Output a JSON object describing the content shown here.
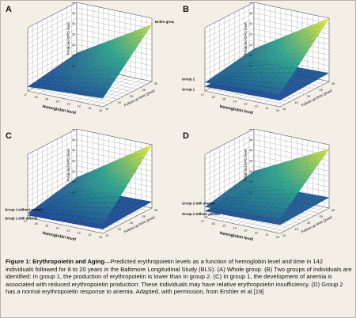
{
  "colors": {
    "background": "#f3efe6",
    "frame_border": "#b9b3a6",
    "surface_low": "#1d3f9a",
    "surface_mid": "#2fa48f",
    "surface_high": "#f0ea34",
    "grid": "#9a9a9a"
  },
  "chart_data": [
    {
      "panel": "A",
      "type": "surface",
      "zlabel": "Predicted EPO level",
      "xlabel": "Hemoglobin level",
      "ylabel": "Follow-up time (year)",
      "z_ticks": [
        "40",
        "35",
        "30",
        "25",
        "20",
        "15",
        "10"
      ],
      "x_ticks": [
        "17",
        "16",
        "15",
        "14",
        "13",
        "12",
        "11",
        "10"
      ],
      "y_ticks": [
        "10",
        "15",
        "20",
        "25",
        "30"
      ],
      "zlim": [
        10,
        40
      ],
      "series": [
        {
          "name": "Entire group",
          "corners": {
            "lowHb_lowT": 14,
            "highHb_lowT": 12,
            "lowHb_highT": 37,
            "highHb_highT": 16
          }
        }
      ]
    },
    {
      "panel": "B",
      "type": "surface",
      "zlabel": "Predicted EPO level",
      "xlabel": "Hemoglobin level",
      "ylabel": "Follow-up time (year)",
      "z_ticks": [
        "40",
        "35",
        "30",
        "25",
        "20",
        "15",
        "10"
      ],
      "x_ticks": [
        "17",
        "16",
        "15",
        "14",
        "13",
        "12",
        "11",
        "10"
      ],
      "y_ticks": [
        "10",
        "15",
        "20",
        "25",
        "30"
      ],
      "zlim": [
        10,
        40
      ],
      "series": [
        {
          "name": "Group 2",
          "corners": {
            "lowHb_lowT": 16,
            "highHb_lowT": 14,
            "lowHb_highT": 40,
            "highHb_highT": 18
          }
        },
        {
          "name": "Group 1",
          "corners": {
            "lowHb_lowT": 13,
            "highHb_lowT": 12,
            "lowHb_highT": 14,
            "highHb_highT": 13
          }
        }
      ]
    },
    {
      "panel": "C",
      "type": "surface",
      "zlabel": "Predicted EPO level",
      "xlabel": "Hemoglobin level",
      "ylabel": "Follow-up time (year)",
      "z_ticks": [
        "40",
        "35",
        "30",
        "25",
        "20",
        "15",
        "10"
      ],
      "x_ticks": [
        "17",
        "16",
        "15",
        "14",
        "13",
        "12",
        "11",
        "10"
      ],
      "y_ticks": [
        "10",
        "15",
        "20",
        "25",
        "30"
      ],
      "zlim": [
        10,
        40
      ],
      "series": [
        {
          "name": "Group 1  without anemia",
          "corners": {
            "lowHb_lowT": 14,
            "highHb_lowT": 12,
            "lowHb_highT": 40,
            "highHb_highT": 17
          }
        },
        {
          "name": "Group 1  with anemia",
          "corners": {
            "lowHb_lowT": 12,
            "highHb_lowT": 11,
            "lowHb_highT": 13,
            "highHb_highT": 12
          }
        }
      ]
    },
    {
      "panel": "D",
      "type": "surface",
      "zlabel": "Predicted EPO level",
      "xlabel": "Hemoglobin level",
      "ylabel": "Follow-up time (year)",
      "z_ticks": [
        "40",
        "35",
        "30",
        "25",
        "20",
        "15",
        "10"
      ],
      "x_ticks": [
        "17",
        "16",
        "15",
        "14",
        "13",
        "12",
        "11",
        "10"
      ],
      "y_ticks": [
        "10",
        "15",
        "20",
        "25",
        "30"
      ],
      "zlim": [
        10,
        40
      ],
      "series": [
        {
          "name": "Group 2  with anemia",
          "corners": {
            "lowHb_lowT": 17,
            "highHb_lowT": 15,
            "lowHb_highT": 38,
            "highHb_highT": 20
          }
        },
        {
          "name": "Group 2  without anemia",
          "corners": {
            "lowHb_lowT": 14,
            "highHb_lowT": 13,
            "lowHb_highT": 15,
            "highHb_highT": 14
          }
        }
      ]
    }
  ],
  "caption": {
    "label": "Figure 1: Erythropoietin and Aging",
    "body": "—Predicted erythropoietin levels as a function of hemoglobin level and time in 142 individuals followed for 8 to 20 years in the Baltimore Longitudinal Study (BLS). (A) Whole group. (B) Two groups of individuals are identified: In group 1, the production of erythropoietin is lower than in group 2. (C) In group 1, the development of anemia is associated with reduced erythropoietin production: These individuals may have relative erythropoietin insufficiency. (D) Group 2 has a normal erythropoietin response to anemia. Adapted, with permission, from Ershler et al.[19]"
  }
}
